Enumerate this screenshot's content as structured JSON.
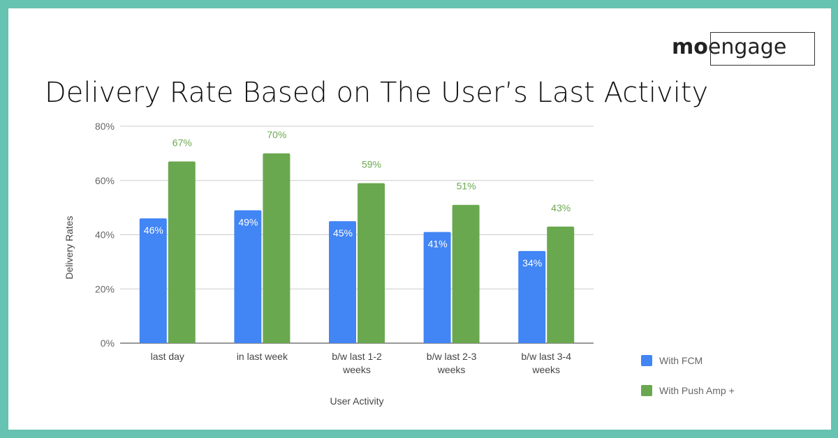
{
  "logo": {
    "text_bold": "mo",
    "text_light": "engage"
  },
  "title": "Delivery Rate Based on The User’s Last Activity",
  "colors": {
    "border": "#66c2b1",
    "fcm": "#4285f4",
    "push_amp": "#6aa84f"
  },
  "chart_data": {
    "type": "bar",
    "title": "",
    "xlabel": "User Activity",
    "ylabel": "Delivery Rates",
    "ylim": [
      0,
      80
    ],
    "yticks": [
      "0%",
      "20%",
      "40%",
      "60%",
      "80%"
    ],
    "grid": true,
    "legend": "right-bottom",
    "categories": [
      [
        "last day"
      ],
      [
        "in last week"
      ],
      [
        "b/w last 1-2",
        "weeks"
      ],
      [
        "b/w last 2-3",
        "weeks"
      ],
      [
        "b/w last 3-4",
        "weeks"
      ]
    ],
    "series": [
      {
        "name": "With FCM",
        "values": [
          46,
          49,
          45,
          41,
          34
        ],
        "labels": [
          "46%",
          "49%",
          "45%",
          "41%",
          "34%"
        ]
      },
      {
        "name": "With Push Amp +",
        "values": [
          67,
          70,
          59,
          51,
          43
        ],
        "labels": [
          "67%",
          "70%",
          "59%",
          "51%",
          "43%"
        ]
      }
    ]
  }
}
